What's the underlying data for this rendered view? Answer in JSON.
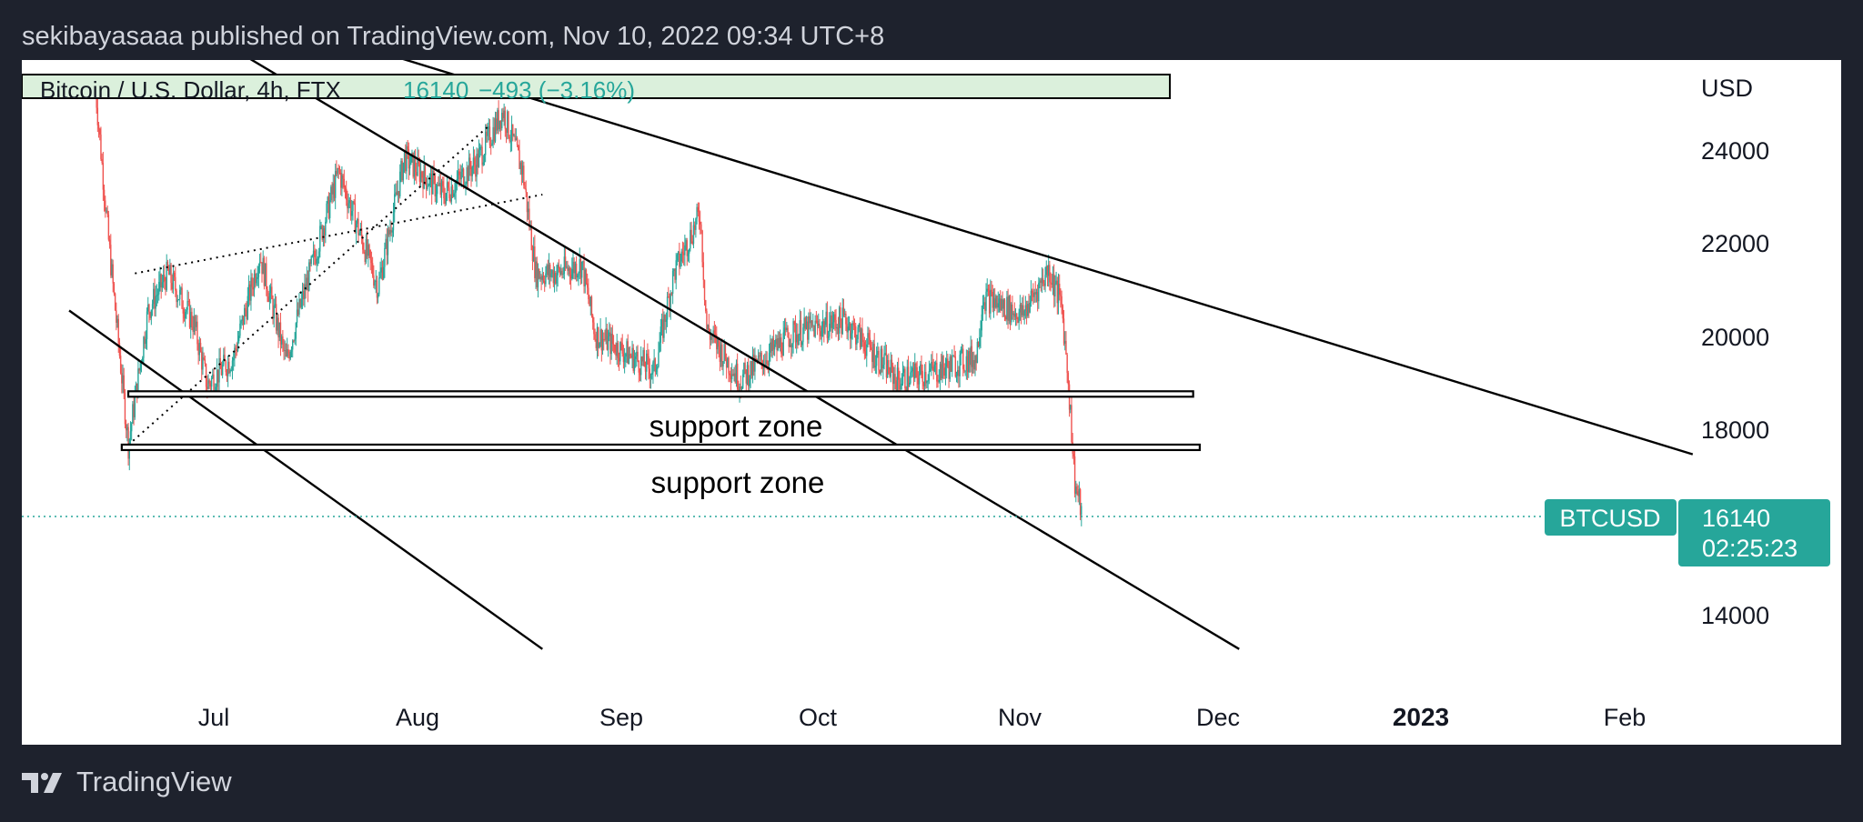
{
  "header": {
    "publisher": "sekibayasaaa published on TradingView.com, Nov 10, 2022 09:34 UTC+8"
  },
  "legend": {
    "symbol": "Bitcoin / U.S. Dollar, 4h, FTX",
    "price": "16140",
    "change": "−493 (−3.16%)"
  },
  "axis": {
    "currency": "USD",
    "y_ticks": [
      "24000",
      "22000",
      "20000",
      "18000",
      "14000"
    ],
    "x_ticks": [
      "Jul",
      "Aug",
      "Sep",
      "Oct",
      "Nov",
      "Dec",
      "2023",
      "Feb"
    ]
  },
  "price_tag": {
    "symbol": "BTCUSD",
    "price": "16140",
    "countdown": "02:25:23"
  },
  "annotations": {
    "zone1": "support zone",
    "zone2": "support zone"
  },
  "footer": {
    "brand": "TradingView"
  },
  "colors": {
    "up": "#26a69a",
    "down": "#ef5350",
    "tag": "#26a69a",
    "background": "#1e222d"
  },
  "chart_data": {
    "type": "candlestick",
    "symbol": "Bitcoin / U.S. Dollar",
    "interval": "4h",
    "exchange": "FTX",
    "y_axis_unit": "USD",
    "ylim": [
      12600,
      25800
    ],
    "last_price": 16140,
    "waypoints": [
      [
        "2022-06-13",
        25300
      ],
      [
        "2022-06-15",
        22000
      ],
      [
        "2022-06-18",
        17600
      ],
      [
        "2022-06-21",
        20500
      ],
      [
        "2022-06-24",
        21300
      ],
      [
        "2022-06-28",
        20200
      ],
      [
        "2022-06-30",
        18900
      ],
      [
        "2022-07-04",
        19500
      ],
      [
        "2022-07-08",
        21700
      ],
      [
        "2022-07-12",
        19400
      ],
      [
        "2022-07-14",
        20500
      ],
      [
        "2022-07-20",
        23500
      ],
      [
        "2022-07-26",
        21000
      ],
      [
        "2022-07-30",
        23800
      ],
      [
        "2022-08-05",
        23000
      ],
      [
        "2022-08-10",
        23700
      ],
      [
        "2022-08-14",
        24800
      ],
      [
        "2022-08-17",
        23500
      ],
      [
        "2022-08-19",
        21300
      ],
      [
        "2022-08-22",
        21300
      ],
      [
        "2022-08-26",
        21500
      ],
      [
        "2022-08-28",
        20000
      ],
      [
        "2022-09-06",
        19200
      ],
      [
        "2022-09-09",
        21300
      ],
      [
        "2022-09-13",
        22600
      ],
      [
        "2022-09-14",
        20100
      ],
      [
        "2022-09-19",
        19000
      ],
      [
        "2022-09-27",
        20000
      ],
      [
        "2022-10-05",
        20300
      ],
      [
        "2022-10-13",
        19000
      ],
      [
        "2022-10-19",
        19200
      ],
      [
        "2022-10-25",
        19500
      ],
      [
        "2022-10-26",
        20800
      ],
      [
        "2022-11-01",
        20400
      ],
      [
        "2022-11-05",
        21400
      ],
      [
        "2022-11-07",
        20600
      ],
      [
        "2022-11-08",
        19000
      ],
      [
        "2022-11-09",
        16800
      ],
      [
        "2022-11-10",
        16140
      ]
    ],
    "support_zones": [
      {
        "label": "support zone",
        "price": 18700,
        "x_range": [
          "2022-06-18",
          "2022-11-27"
        ]
      },
      {
        "label": "support zone",
        "price": 17550,
        "x_range": [
          "2022-06-17",
          "2022-11-28"
        ]
      }
    ],
    "resistance_box": {
      "price_range": [
        24600,
        25000
      ],
      "x_range": [
        "2022-06-13",
        "2022-11-25"
      ]
    },
    "trendlines": [
      {
        "from": [
          "2022-06-09",
          20500
        ],
        "to": [
          "2022-08-20",
          13200
        ]
      },
      {
        "from": [
          "2022-06-12",
          28000
        ],
        "to": [
          "2022-12-04",
          13200
        ]
      },
      {
        "from": [
          "2022-06-12",
          28000
        ],
        "to": [
          "2023-02-11",
          17400
        ]
      }
    ],
    "channel": [
      {
        "from": [
          "2022-06-18",
          17600
        ],
        "to": [
          "2022-08-12",
          24500
        ],
        "style": "dotted"
      },
      {
        "from": [
          "2022-06-19",
          21300
        ],
        "to": [
          "2022-08-20",
          23000
        ],
        "style": "dotted"
      }
    ],
    "x_ticks": [
      "Jul",
      "Aug",
      "Sep",
      "Oct",
      "Nov",
      "Dec",
      "2023",
      "Feb"
    ],
    "y_ticks": [
      24000,
      22000,
      20000,
      18000,
      14000
    ]
  }
}
